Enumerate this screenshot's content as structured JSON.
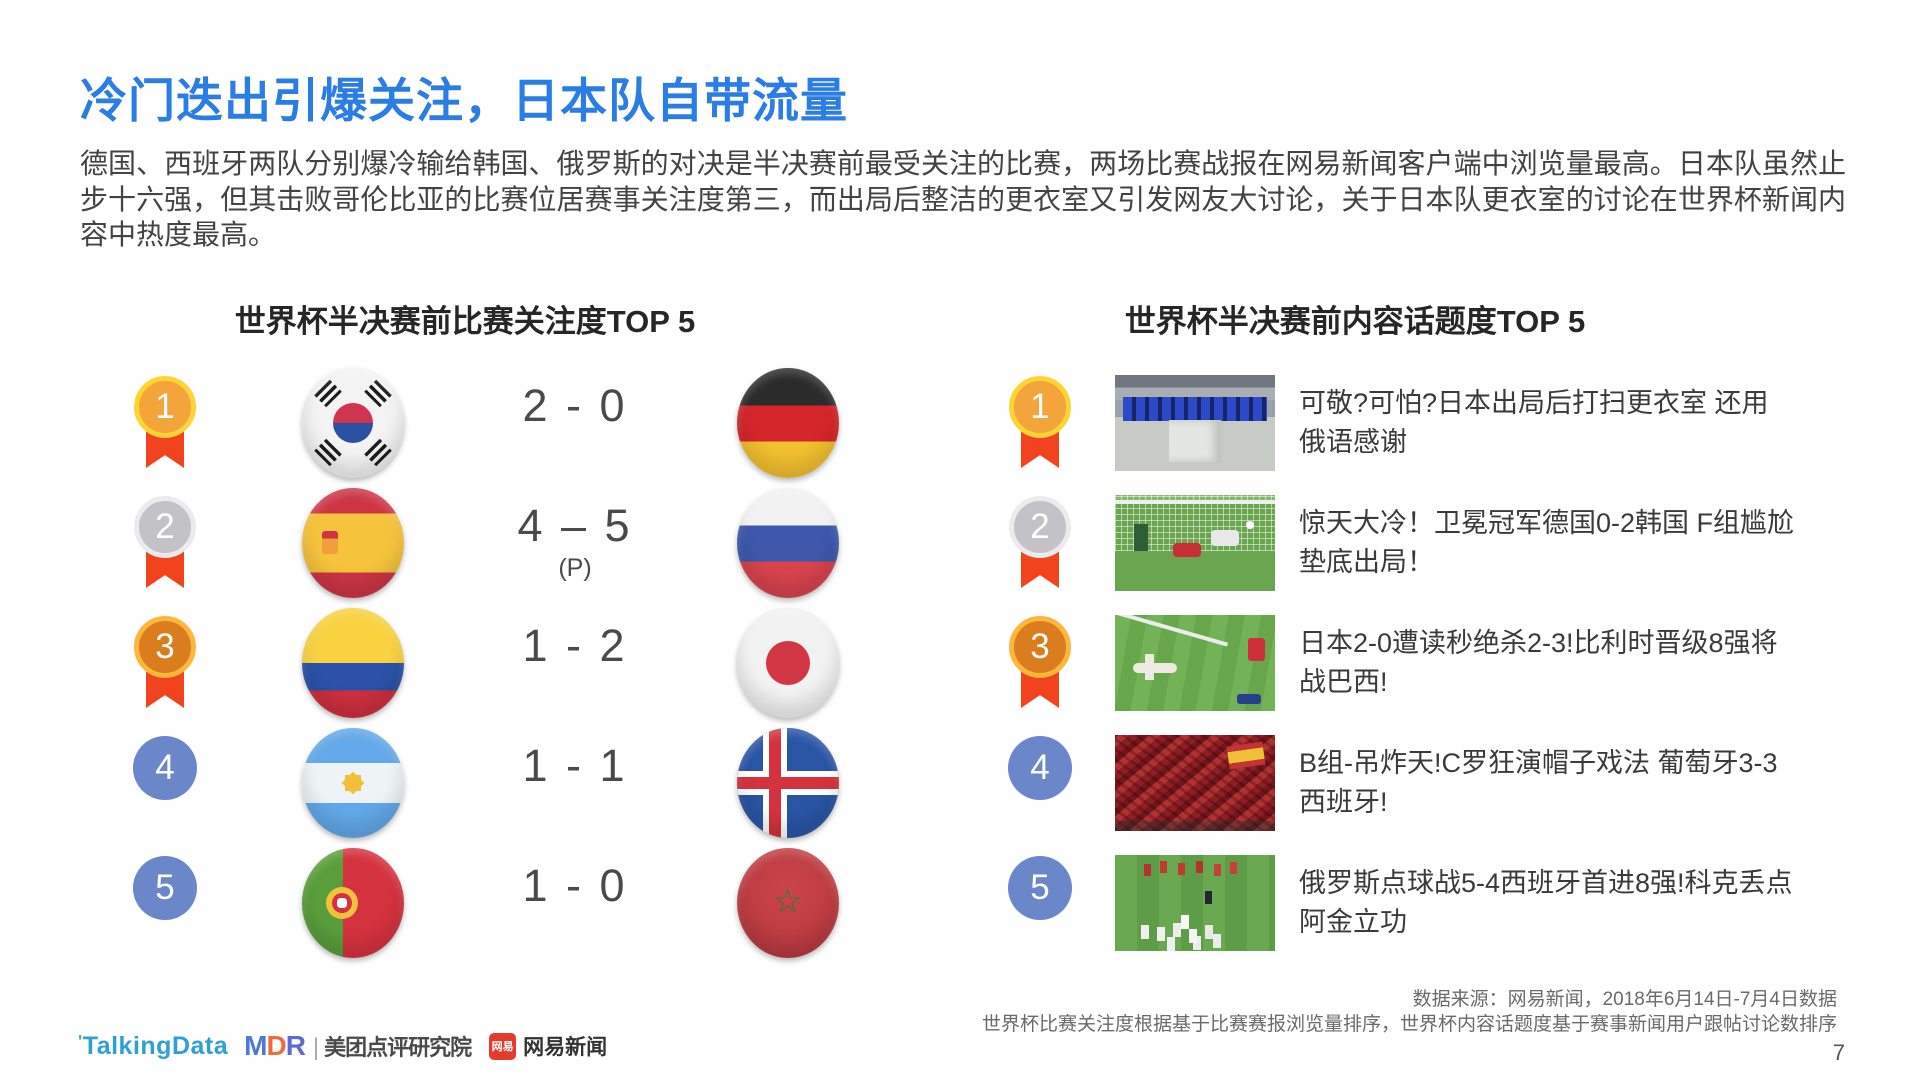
{
  "colors": {
    "title_blue": "#2a7de4",
    "rank_blue": "#6c86ca",
    "medal_gold": "#fcd433",
    "medal_silver": "#ebebee",
    "medal_bronze": "#fdb73c",
    "ribbon_red": "#f2431f"
  },
  "header": {
    "title": "冷门迭出引爆关注，日本队自带流量"
  },
  "intro": {
    "text": "德国、西班牙两队分别爆冷输给韩国、俄罗斯的对决是半决赛前最受关注的比赛，两场比赛战报在网易新闻客户端中浏览量最高。日本队虽然止步十六强，但其击败哥伦比亚的比赛位居赛事关注度第三，而出局后整洁的更衣室又引发网友大讨论，关于日本队更衣室的讨论在世界杯新闻内容中热度最高。"
  },
  "matches": {
    "title": "世界杯半决赛前比赛关注度TOP 5",
    "rows": [
      {
        "rank": "1",
        "home_flag": "south-korea",
        "score": "2 - 0",
        "note": "",
        "away_flag": "germany"
      },
      {
        "rank": "2",
        "home_flag": "spain",
        "score": "4 – 5",
        "note": "(P)",
        "away_flag": "russia"
      },
      {
        "rank": "3",
        "home_flag": "colombia",
        "score": "1 - 2",
        "note": "",
        "away_flag": "japan"
      },
      {
        "rank": "4",
        "home_flag": "argentina",
        "score": "1 - 1",
        "note": "",
        "away_flag": "iceland"
      },
      {
        "rank": "5",
        "home_flag": "portugal",
        "score": "1 - 0",
        "note": "",
        "away_flag": "morocco"
      }
    ]
  },
  "topics": {
    "title": "世界杯半决赛前内容话题度TOP 5",
    "rows": [
      {
        "rank": "1",
        "thumbnail": "japan-locker-room-photo",
        "headline": "可敬?可怕?日本出局后打扫更衣室 还用俄语感谢"
      },
      {
        "rank": "2",
        "thumbnail": "germany-korea-goal-photo",
        "headline": "惊天大冷！卫冕冠军德国0-2韩国 F组尴尬垫底出局！"
      },
      {
        "rank": "3",
        "thumbnail": "japan-belgium-players-photo",
        "headline": "日本2-0遭读秒绝杀2-3!比利时晋级8强将战巴西!"
      },
      {
        "rank": "4",
        "thumbnail": "portugal-spain-fans-photo",
        "headline": "B组-吊炸天!C罗狂演帽子戏法 葡萄牙3-3西班牙!"
      },
      {
        "rank": "5",
        "thumbnail": "russia-celebration-photo",
        "headline": "俄罗斯点球战5-4西班牙首进8强!科克丢点阿金立功"
      }
    ]
  },
  "footer": {
    "source_line1": "数据来源：网易新闻，2018年6月14日-7月4日数据",
    "source_line2": "世界杯比赛关注度根据基于比赛赛报浏览量排序，世界杯内容话题度基于赛事新闻用户跟帖讨论数排序",
    "page_number": "7",
    "logos": {
      "td_mark": "'",
      "talkingdata": "TalkingData",
      "mdr_m": "M",
      "mdr_d": "D",
      "mdr_r": "R",
      "mdr_org": "美团点评研究院",
      "netease_badge": "网易",
      "netease": "网易新闻"
    }
  }
}
